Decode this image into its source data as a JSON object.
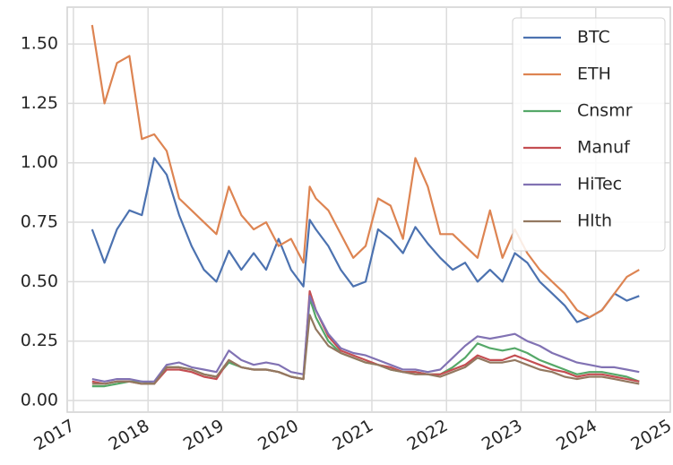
{
  "chart_data": {
    "type": "line",
    "x": [
      "2017-04",
      "2017-06",
      "2017-08",
      "2017-10",
      "2017-12",
      "2018-02",
      "2018-04",
      "2018-06",
      "2018-08",
      "2018-10",
      "2018-12",
      "2019-02",
      "2019-04",
      "2019-06",
      "2019-08",
      "2019-10",
      "2019-12",
      "2020-02",
      "2020-03",
      "2020-04",
      "2020-06",
      "2020-08",
      "2020-10",
      "2020-12",
      "2021-02",
      "2021-04",
      "2021-06",
      "2021-08",
      "2021-10",
      "2021-12",
      "2022-02",
      "2022-04",
      "2022-06",
      "2022-08",
      "2022-10",
      "2022-12",
      "2023-02",
      "2023-04",
      "2023-06",
      "2023-08",
      "2023-10",
      "2023-12",
      "2024-02",
      "2024-04",
      "2024-06",
      "2024-08"
    ],
    "series": [
      {
        "name": "BTC",
        "color": "#4c72b0",
        "values": [
          0.72,
          0.58,
          0.72,
          0.8,
          0.78,
          1.02,
          0.95,
          0.78,
          0.65,
          0.55,
          0.5,
          0.63,
          0.55,
          0.62,
          0.55,
          0.68,
          0.55,
          0.48,
          0.76,
          0.72,
          0.65,
          0.55,
          0.48,
          0.5,
          0.72,
          0.68,
          0.62,
          0.73,
          0.66,
          0.6,
          0.55,
          0.58,
          0.5,
          0.55,
          0.5,
          0.62,
          0.58,
          0.5,
          0.45,
          0.4,
          0.33,
          0.35,
          0.38,
          0.45,
          0.42,
          0.44
        ]
      },
      {
        "name": "ETH",
        "color": "#dd8452",
        "values": [
          1.58,
          1.25,
          1.42,
          1.45,
          1.1,
          1.12,
          1.05,
          0.85,
          0.8,
          0.75,
          0.7,
          0.9,
          0.78,
          0.72,
          0.75,
          0.65,
          0.68,
          0.58,
          0.9,
          0.85,
          0.8,
          0.7,
          0.6,
          0.65,
          0.85,
          0.82,
          0.68,
          1.02,
          0.9,
          0.7,
          0.7,
          0.65,
          0.6,
          0.8,
          0.6,
          0.72,
          0.62,
          0.55,
          0.5,
          0.45,
          0.38,
          0.35,
          0.38,
          0.45,
          0.52,
          0.55
        ]
      },
      {
        "name": "Cnsmr",
        "color": "#55a868",
        "values": [
          0.06,
          0.06,
          0.07,
          0.08,
          0.08,
          0.07,
          0.14,
          0.14,
          0.13,
          0.11,
          0.1,
          0.16,
          0.14,
          0.13,
          0.13,
          0.12,
          0.1,
          0.09,
          0.43,
          0.35,
          0.25,
          0.2,
          0.18,
          0.16,
          0.15,
          0.13,
          0.12,
          0.12,
          0.11,
          0.11,
          0.14,
          0.18,
          0.24,
          0.22,
          0.21,
          0.22,
          0.2,
          0.17,
          0.15,
          0.13,
          0.11,
          0.12,
          0.12,
          0.11,
          0.1,
          0.08
        ]
      },
      {
        "name": "Manuf",
        "color": "#c44e52",
        "values": [
          0.08,
          0.07,
          0.08,
          0.08,
          0.07,
          0.07,
          0.13,
          0.13,
          0.12,
          0.1,
          0.09,
          0.17,
          0.14,
          0.13,
          0.13,
          0.12,
          0.1,
          0.09,
          0.46,
          0.38,
          0.27,
          0.21,
          0.19,
          0.17,
          0.15,
          0.14,
          0.12,
          0.12,
          0.11,
          0.11,
          0.13,
          0.15,
          0.19,
          0.17,
          0.17,
          0.19,
          0.17,
          0.15,
          0.13,
          0.12,
          0.1,
          0.11,
          0.11,
          0.1,
          0.09,
          0.08
        ]
      },
      {
        "name": "HiTec",
        "color": "#8172b3",
        "values": [
          0.09,
          0.08,
          0.09,
          0.09,
          0.08,
          0.08,
          0.15,
          0.16,
          0.14,
          0.13,
          0.12,
          0.21,
          0.17,
          0.15,
          0.16,
          0.15,
          0.12,
          0.11,
          0.44,
          0.38,
          0.28,
          0.22,
          0.2,
          0.19,
          0.17,
          0.15,
          0.13,
          0.13,
          0.12,
          0.13,
          0.18,
          0.23,
          0.27,
          0.26,
          0.27,
          0.28,
          0.25,
          0.23,
          0.2,
          0.18,
          0.16,
          0.15,
          0.14,
          0.14,
          0.13,
          0.12
        ]
      },
      {
        "name": "Hlth",
        "color": "#937860",
        "values": [
          0.07,
          0.07,
          0.08,
          0.08,
          0.07,
          0.07,
          0.14,
          0.14,
          0.13,
          0.11,
          0.1,
          0.17,
          0.14,
          0.13,
          0.13,
          0.12,
          0.1,
          0.09,
          0.36,
          0.3,
          0.23,
          0.2,
          0.18,
          0.16,
          0.15,
          0.13,
          0.12,
          0.11,
          0.11,
          0.1,
          0.12,
          0.14,
          0.18,
          0.16,
          0.16,
          0.17,
          0.15,
          0.13,
          0.12,
          0.1,
          0.09,
          0.1,
          0.1,
          0.09,
          0.08,
          0.07
        ]
      }
    ],
    "xlim": [
      "2016-12",
      "2025-01"
    ],
    "xticks": [
      2017,
      2018,
      2019,
      2020,
      2021,
      2022,
      2023,
      2024,
      2025
    ],
    "ylim": [
      -0.049,
      1.655
    ],
    "yticks": [
      {
        "value": 0,
        "label": "0.00"
      },
      {
        "value": 0.25,
        "label": "0.25"
      },
      {
        "value": 0.5,
        "label": "0.50"
      },
      {
        "value": 0.75,
        "label": "0.75"
      },
      {
        "value": 1,
        "label": "1.00"
      },
      {
        "value": 1.25,
        "label": "1.25"
      },
      {
        "value": 1.5,
        "label": "1.50"
      }
    ],
    "grid": true,
    "legend": "upper right"
  }
}
